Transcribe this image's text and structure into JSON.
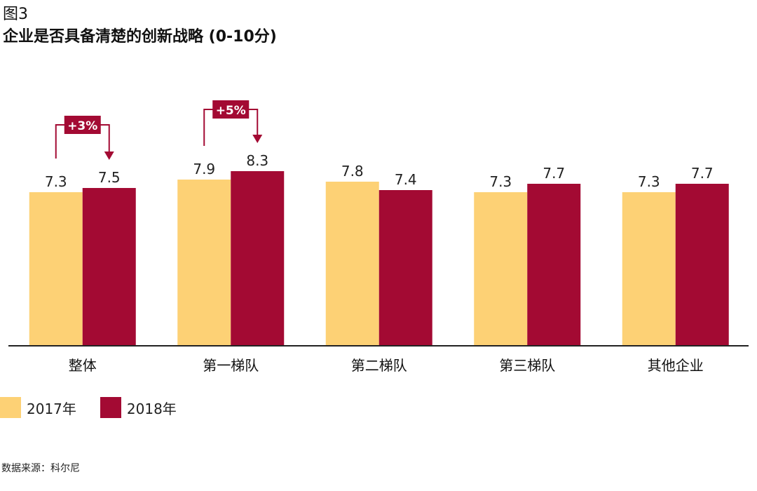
{
  "header": {
    "fig_label": "图3",
    "title": "企业是否具备清楚的创新战略 (0-10分)"
  },
  "colors": {
    "series_2017": "#FDD175",
    "series_2018": "#A30A33",
    "axis": "#222222"
  },
  "chart_data": {
    "type": "bar",
    "categories": [
      "整体",
      "第一梯队",
      "第二梯队",
      "第三梯队",
      "其他企业"
    ],
    "series": [
      {
        "name": "2017年",
        "values": [
          7.3,
          7.9,
          7.8,
          7.3,
          7.3
        ],
        "labels": [
          "7.3",
          "7.9",
          "7.8",
          "7.3",
          "7.3"
        ]
      },
      {
        "name": "2018年",
        "values": [
          7.5,
          8.3,
          7.4,
          7.7,
          7.7
        ],
        "labels": [
          "7.5",
          "8.3",
          "7.4",
          "7.7",
          "7.7"
        ]
      }
    ],
    "ylim": [
      0,
      10
    ],
    "annotations": [
      {
        "category": "整体",
        "text": "+3%"
      },
      {
        "category": "第一梯队",
        "text": "+5%"
      }
    ],
    "grid": false,
    "legend": "bottom-left"
  },
  "legend": {
    "items": [
      "2017年",
      "2018年"
    ]
  },
  "footer": {
    "source": "数据来源：科尔尼"
  }
}
